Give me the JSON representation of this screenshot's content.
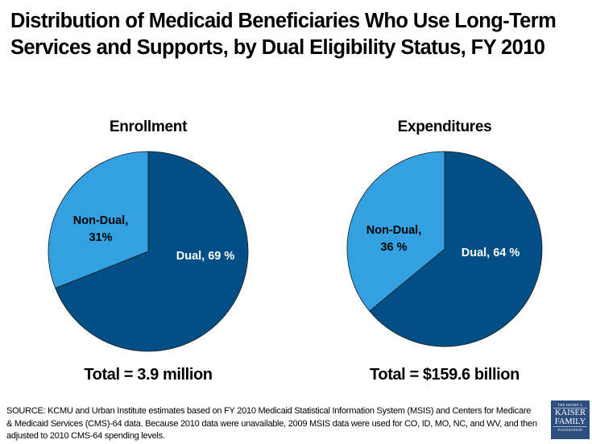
{
  "title": "Distribution of Medicaid Beneficiaries Who Use Long-Term Services and Supports, by Dual Eligibility Status, FY 2010",
  "colors": {
    "dual": "#024f86",
    "non_dual": "#33a1e1",
    "edge": "#1a1a1a",
    "dual_label": "#ffffff",
    "non_dual_label": "#000000"
  },
  "chart_data": [
    {
      "type": "pie",
      "title": "Enrollment",
      "categories": [
        "Dual",
        "Non-Dual"
      ],
      "values": [
        69,
        31
      ],
      "unit": "%",
      "labels": [
        "Dual, 69 %",
        "Non-Dual, 31%"
      ],
      "label_lines": [
        [
          "Dual, 69 %"
        ],
        [
          "Non-Dual,",
          "31%"
        ]
      ],
      "start_angle": "12 o'clock, clockwise",
      "total": "Total = 3.9 million"
    },
    {
      "type": "pie",
      "title": "Expenditures",
      "categories": [
        "Dual",
        "Non-Dual"
      ],
      "values": [
        64,
        36
      ],
      "unit": "%",
      "labels": [
        "Dual, 64 %",
        "Non-Dual, 36 %"
      ],
      "label_lines": [
        [
          "Dual, 64 %"
        ],
        [
          "Non-Dual,",
          "36 %"
        ]
      ],
      "start_angle": "12 o'clock, clockwise",
      "total": "Total = $159.6 billion"
    }
  ],
  "source": "SOURCE: KCMU and Urban Institute estimates based on FY 2010 Medicaid Statistical Information System (MSIS) and Centers for Medicare & Medicaid Services (CMS)-64 data. Because 2010 data were unavailable, 2009 MSIS data were used for CO, ID, MO, NC, and WV, and then adjusted to 2010 CMS-64 spending levels.",
  "logo": {
    "line1": "THE HENRY J.",
    "line2": "KAISER",
    "line3": "FAMILY",
    "line4": "FOUNDATION"
  }
}
